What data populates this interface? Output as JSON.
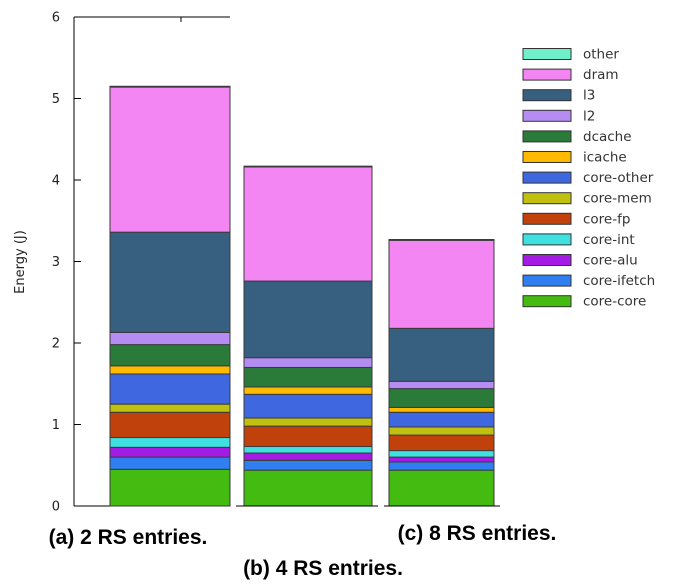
{
  "chart_data": {
    "type": "bar",
    "stacked": true,
    "ylabel": "Energy (J)",
    "ylim": [
      0,
      6
    ],
    "yticks": [
      0,
      1,
      2,
      3,
      4,
      5,
      6
    ],
    "grid": false,
    "legend_position": "right",
    "categories": [
      "(a) 2 RS entries.",
      "(b) 4 RS entries.",
      "(c) 8 RS entries."
    ],
    "series": [
      {
        "name": "core-core",
        "color": "#44bb11",
        "values": [
          0.45,
          0.44,
          0.44
        ]
      },
      {
        "name": "core-ifetch",
        "color": "#2f7ff0",
        "values": [
          0.15,
          0.12,
          0.1
        ]
      },
      {
        "name": "core-alu",
        "color": "#a41be3",
        "values": [
          0.12,
          0.09,
          0.06
        ]
      },
      {
        "name": "core-int",
        "color": "#3fe0e0",
        "values": [
          0.12,
          0.08,
          0.08
        ]
      },
      {
        "name": "core-fp",
        "color": "#c0410c",
        "values": [
          0.31,
          0.25,
          0.19
        ]
      },
      {
        "name": "core-mem",
        "color": "#c0c010",
        "values": [
          0.1,
          0.1,
          0.1
        ]
      },
      {
        "name": "core-other",
        "color": "#3f68e0",
        "values": [
          0.37,
          0.29,
          0.18
        ]
      },
      {
        "name": "icache",
        "color": "#ffba00",
        "values": [
          0.1,
          0.09,
          0.06
        ]
      },
      {
        "name": "dcache",
        "color": "#2a7a3a",
        "values": [
          0.26,
          0.24,
          0.23
        ]
      },
      {
        "name": "l2",
        "color": "#b48cf2",
        "values": [
          0.15,
          0.12,
          0.09
        ]
      },
      {
        "name": "l3",
        "color": "#365f80",
        "values": [
          1.23,
          0.94,
          0.65
        ]
      },
      {
        "name": "dram",
        "color": "#f486f4",
        "values": [
          1.78,
          1.4,
          1.08
        ]
      },
      {
        "name": "other",
        "color": "#6ff0c8",
        "values": [
          0.01,
          0.01,
          0.01
        ]
      }
    ]
  }
}
